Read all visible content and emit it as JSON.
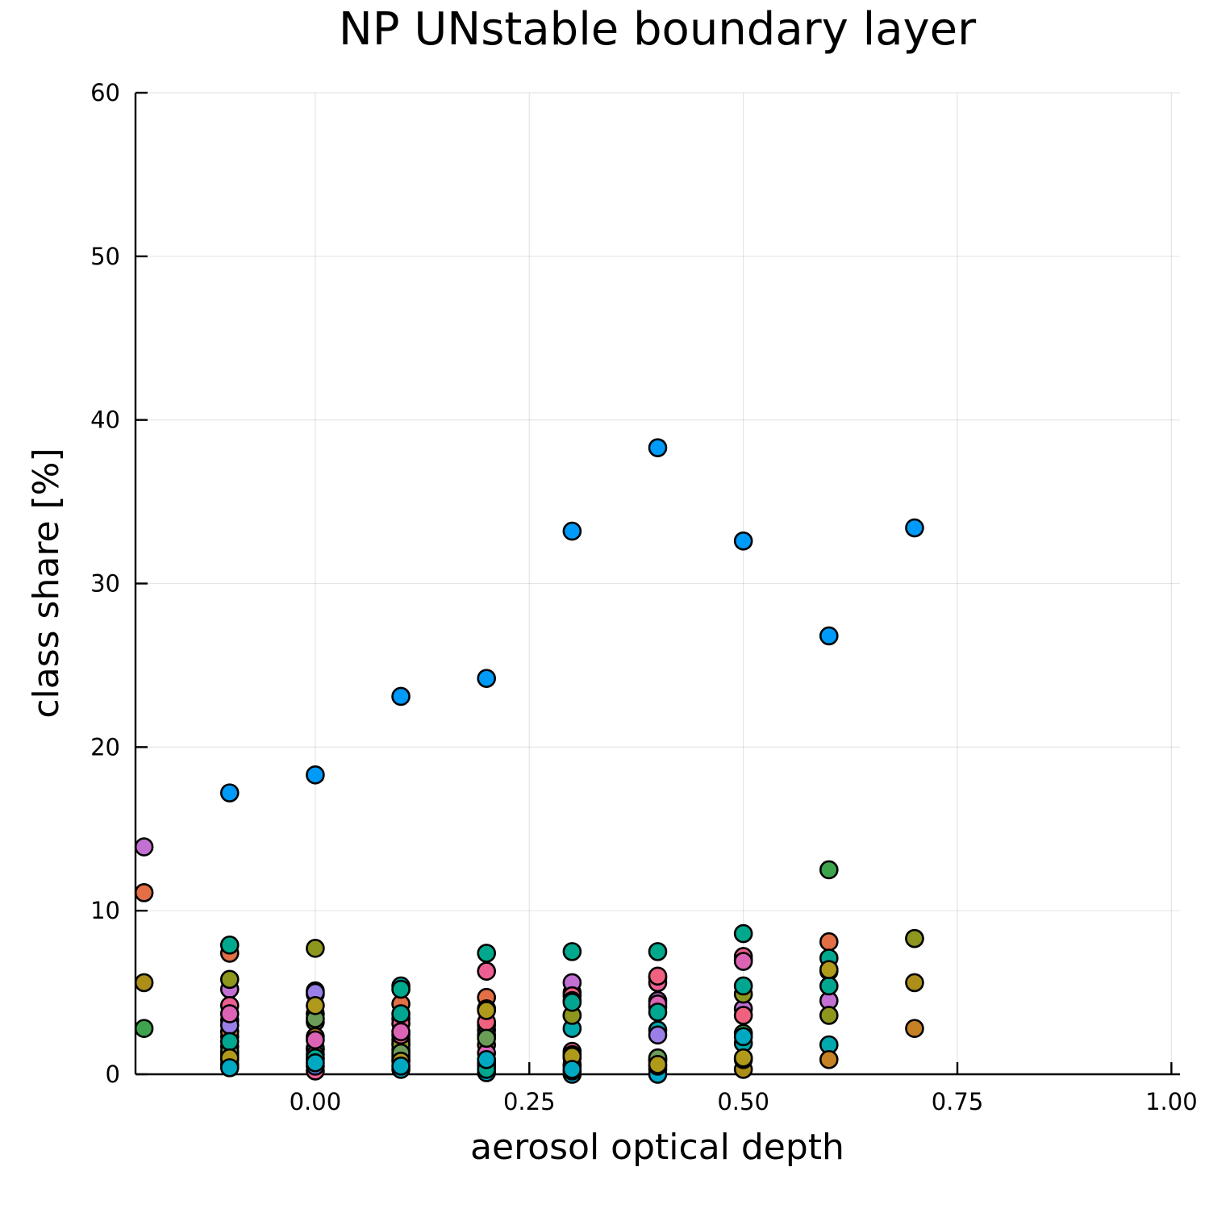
{
  "chart_data": {
    "type": "scatter",
    "title": "NP UNstable boundary layer",
    "xlabel": "aerosol optical depth",
    "ylabel": "class share [%]",
    "xlim": [
      -0.21,
      1.01
    ],
    "ylim": [
      0,
      60
    ],
    "xticks": [
      {
        "value": 0.0,
        "label": "0.00"
      },
      {
        "value": 0.25,
        "label": "0.25"
      },
      {
        "value": 0.5,
        "label": "0.50"
      },
      {
        "value": 0.75,
        "label": "0.75"
      },
      {
        "value": 1.0,
        "label": "1.00"
      }
    ],
    "yticks": [
      {
        "value": 0,
        "label": "0"
      },
      {
        "value": 10,
        "label": "10"
      },
      {
        "value": 20,
        "label": "20"
      },
      {
        "value": 30,
        "label": "30"
      },
      {
        "value": 40,
        "label": "40"
      },
      {
        "value": 50,
        "label": "50"
      },
      {
        "value": 60,
        "label": "60"
      }
    ],
    "grid": true,
    "legend": "none",
    "series": [
      {
        "color": "#009af9",
        "points": [
          [
            -0.1,
            17.2
          ],
          [
            0.0,
            18.3
          ],
          [
            0.1,
            23.1
          ],
          [
            0.2,
            24.2
          ],
          [
            0.3,
            33.2
          ],
          [
            0.4,
            38.3
          ],
          [
            0.5,
            32.6
          ],
          [
            0.6,
            26.8
          ],
          [
            0.7,
            33.4
          ]
        ]
      },
      {
        "color": "#e26f46",
        "points": [
          [
            -0.2,
            11.1
          ],
          [
            -0.1,
            7.4
          ],
          [
            0.0,
            4.9
          ],
          [
            0.1,
            4.3
          ],
          [
            0.2,
            4.7
          ],
          [
            0.3,
            5.0
          ],
          [
            0.4,
            5.9
          ],
          [
            0.5,
            7.0
          ],
          [
            0.6,
            8.1
          ],
          [
            0.7,
            8.3
          ]
        ]
      },
      {
        "color": "#3da44d",
        "points": [
          [
            -0.2,
            2.8
          ],
          [
            -0.1,
            2.3
          ],
          [
            0.0,
            3.2
          ],
          [
            0.1,
            1.5
          ],
          [
            0.2,
            0.7
          ],
          [
            0.3,
            0.5
          ],
          [
            0.4,
            0.3
          ],
          [
            0.5,
            2.5
          ],
          [
            0.6,
            12.5
          ]
        ]
      },
      {
        "color": "#c271d2",
        "points": [
          [
            -0.2,
            13.9
          ],
          [
            -0.1,
            5.2
          ],
          [
            0.0,
            5.1
          ],
          [
            0.1,
            2.1
          ],
          [
            0.2,
            4.0
          ],
          [
            0.3,
            5.6
          ],
          [
            0.4,
            4.5
          ],
          [
            0.5,
            4.0
          ],
          [
            0.6,
            4.5
          ]
        ]
      },
      {
        "color": "#ac8e18",
        "points": [
          [
            -0.2,
            5.6
          ],
          [
            -0.1,
            1.2
          ],
          [
            0.0,
            3.7
          ],
          [
            0.1,
            3.4
          ],
          [
            0.2,
            4.0
          ],
          [
            0.3,
            3.6
          ],
          [
            0.4,
            0.8
          ],
          [
            0.5,
            0.3
          ],
          [
            0.6,
            6.3
          ],
          [
            0.7,
            5.6
          ]
        ]
      },
      {
        "color": "#00a9ad",
        "points": [
          [
            -0.1,
            3.3
          ],
          [
            0.0,
            1.6
          ],
          [
            0.1,
            5.4
          ],
          [
            0.2,
            2.4
          ],
          [
            0.3,
            2.8
          ],
          [
            0.4,
            2.7
          ],
          [
            0.5,
            1.9
          ],
          [
            0.6,
            1.8
          ]
        ]
      },
      {
        "color": "#ed5e93",
        "points": [
          [
            -0.1,
            4.2
          ],
          [
            0.0,
            0.2
          ],
          [
            0.1,
            3.1
          ],
          [
            0.2,
            6.3
          ],
          [
            0.3,
            1.4
          ],
          [
            0.4,
            5.6
          ],
          [
            0.5,
            7.2
          ]
        ]
      },
      {
        "color": "#c68125",
        "points": [
          [
            -0.1,
            2.6
          ],
          [
            0.0,
            2.3
          ],
          [
            0.1,
            1.9
          ],
          [
            0.2,
            1.8
          ],
          [
            0.3,
            1.0
          ],
          [
            0.4,
            0.9
          ],
          [
            0.5,
            0.9
          ],
          [
            0.6,
            0.9
          ],
          [
            0.7,
            2.8
          ]
        ]
      },
      {
        "color": "#00a98d",
        "points": [
          [
            -0.1,
            7.9
          ],
          [
            0.0,
            1.5
          ],
          [
            0.1,
            5.2
          ],
          [
            0.2,
            7.4
          ],
          [
            0.3,
            7.5
          ],
          [
            0.4,
            7.5
          ],
          [
            0.5,
            8.6
          ],
          [
            0.6,
            7.1
          ]
        ]
      },
      {
        "color": "#8e971d",
        "points": [
          [
            -0.1,
            5.8
          ],
          [
            0.0,
            7.7
          ],
          [
            0.1,
            1.8
          ],
          [
            0.2,
            2.7
          ],
          [
            0.3,
            3.6
          ],
          [
            0.4,
            4.1
          ],
          [
            0.5,
            4.9
          ],
          [
            0.6,
            3.6
          ],
          [
            0.7,
            8.3
          ]
        ]
      },
      {
        "color": "#00a8cb",
        "points": [
          [
            -0.1,
            0.6
          ],
          [
            0.0,
            0.9
          ],
          [
            0.1,
            0.3
          ],
          [
            0.2,
            0.1
          ],
          [
            0.3,
            0.0
          ],
          [
            0.4,
            0.0
          ]
        ]
      },
      {
        "color": "#9b7fe9",
        "points": [
          [
            -0.1,
            3.0
          ],
          [
            0.0,
            5.0
          ],
          [
            0.1,
            0.9
          ],
          [
            0.2,
            3.0
          ],
          [
            0.3,
            0.6
          ],
          [
            0.4,
            2.4
          ]
        ]
      },
      {
        "color": "#618df6",
        "points": [
          [
            -0.1,
            1.7
          ],
          [
            0.0,
            0.5
          ],
          [
            0.1,
            1.1
          ],
          [
            0.2,
            0.5
          ],
          [
            0.3,
            0.2
          ],
          [
            0.4,
            0.5
          ]
        ]
      },
      {
        "color": "#f06180",
        "points": [
          [
            -0.1,
            0.9
          ],
          [
            0.0,
            1.2
          ],
          [
            0.1,
            2.4
          ],
          [
            0.2,
            3.2
          ],
          [
            0.3,
            4.8
          ],
          [
            0.4,
            6.0
          ],
          [
            0.5,
            3.6
          ]
        ]
      },
      {
        "color": "#dd64b5",
        "points": [
          [
            -0.1,
            3.7
          ],
          [
            0.0,
            2.1
          ],
          [
            0.1,
            2.6
          ],
          [
            0.2,
            1.3
          ],
          [
            0.3,
            4.5
          ],
          [
            0.4,
            4.3
          ],
          [
            0.5,
            6.9
          ]
        ]
      },
      {
        "color": "#6b9d58",
        "points": [
          [
            -0.1,
            1.4
          ],
          [
            0.0,
            3.4
          ],
          [
            0.1,
            1.3
          ],
          [
            0.2,
            2.2
          ],
          [
            0.3,
            1.2
          ],
          [
            0.4,
            1.0
          ]
        ]
      },
      {
        "color": "#00a68f",
        "points": [
          [
            -0.1,
            2.0
          ],
          [
            0.0,
            1.0
          ],
          [
            0.1,
            3.7
          ],
          [
            0.2,
            0.3
          ],
          [
            0.3,
            4.4
          ],
          [
            0.4,
            3.8
          ],
          [
            0.5,
            5.4
          ],
          [
            0.6,
            5.4
          ]
        ]
      },
      {
        "color": "#b09a1b",
        "points": [
          [
            -0.1,
            1.0
          ],
          [
            0.0,
            4.2
          ],
          [
            0.1,
            0.8
          ],
          [
            0.2,
            3.9
          ],
          [
            0.3,
            1.1
          ],
          [
            0.4,
            0.6
          ],
          [
            0.5,
            1.0
          ],
          [
            0.6,
            6.4
          ]
        ]
      },
      {
        "color": "#00a8c1",
        "points": [
          [
            -0.1,
            0.4
          ],
          [
            0.0,
            0.7
          ],
          [
            0.1,
            0.5
          ],
          [
            0.2,
            0.9
          ],
          [
            0.3,
            0.3
          ],
          [
            0.5,
            2.3
          ]
        ]
      }
    ]
  }
}
